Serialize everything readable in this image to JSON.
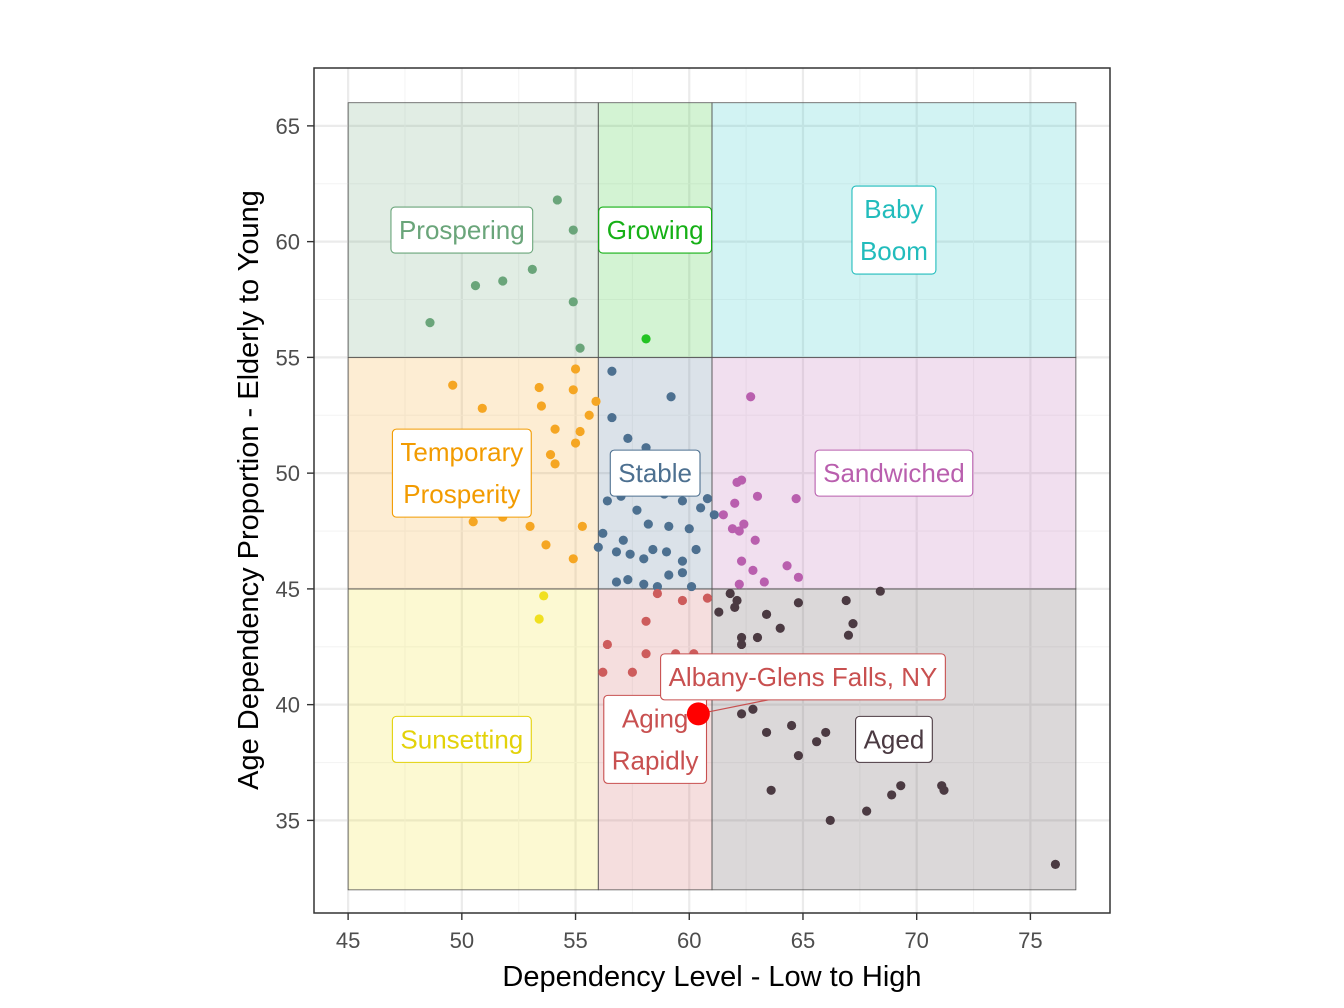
{
  "chart_data": {
    "type": "scatter",
    "title": "",
    "xlabel": "Dependency Level - Low to High",
    "ylabel": "Age Dependency Proportion - Elderly to Young",
    "xlim": [
      43.5,
      78.5
    ],
    "ylim": [
      31,
      67.5
    ],
    "x_ticks": [
      45,
      50,
      55,
      60,
      65,
      70,
      75
    ],
    "y_ticks": [
      35,
      40,
      45,
      50,
      55,
      60,
      65
    ],
    "grid": true,
    "legend": "none",
    "regions": [
      {
        "name": "Prospering",
        "label_lines": [
          "Prospering"
        ],
        "x": [
          45,
          56
        ],
        "y": [
          55,
          66
        ],
        "fill": "#6aa57a",
        "text_color": "#6aa57a",
        "label_at": [
          50,
          60.5
        ]
      },
      {
        "name": "Growing",
        "label_lines": [
          "Growing"
        ],
        "x": [
          56,
          61
        ],
        "y": [
          55,
          66
        ],
        "fill": "#22c422",
        "text_color": "#16b016",
        "label_at": [
          58.5,
          60.5
        ]
      },
      {
        "name": "Baby Boom",
        "label_lines": [
          "Baby",
          "Boom"
        ],
        "x": [
          61,
          77
        ],
        "y": [
          55,
          66
        ],
        "fill": "#20c2c2",
        "text_color": "#22bcbc",
        "label_at": [
          69,
          60.5
        ]
      },
      {
        "name": "Temporary Prosperity",
        "label_lines": [
          "Temporary",
          "Prosperity"
        ],
        "x": [
          45,
          56
        ],
        "y": [
          45,
          55
        ],
        "fill": "#f5a623",
        "text_color": "#f29b00",
        "label_at": [
          50,
          50
        ]
      },
      {
        "name": "Stable",
        "label_lines": [
          "Stable"
        ],
        "x": [
          56,
          61
        ],
        "y": [
          45,
          55
        ],
        "fill": "#4d7090",
        "text_color": "#4d7090",
        "label_at": [
          58.5,
          50
        ]
      },
      {
        "name": "Sandwiched",
        "label_lines": [
          "Sandwiched"
        ],
        "x": [
          61,
          77
        ],
        "y": [
          45,
          55
        ],
        "fill": "#b95fae",
        "text_color": "#b95fae",
        "label_at": [
          69,
          50
        ]
      },
      {
        "name": "Sunsetting",
        "label_lines": [
          "Sunsetting"
        ],
        "x": [
          45,
          56
        ],
        "y": [
          32,
          45
        ],
        "fill": "#f0e020",
        "text_color": "#e3d20a",
        "label_at": [
          50,
          38.5
        ]
      },
      {
        "name": "Aging Rapidly",
        "label_lines": [
          "Aging",
          "Rapidly"
        ],
        "x": [
          56,
          61
        ],
        "y": [
          32,
          45
        ],
        "fill": "#cd5c5c",
        "text_color": "#c85050",
        "label_at": [
          58.5,
          38.5
        ]
      },
      {
        "name": "Aged",
        "label_lines": [
          "Aged"
        ],
        "x": [
          61,
          77
        ],
        "y": [
          32,
          45
        ],
        "fill": "#4b3a42",
        "text_color": "#4b3a42",
        "label_at": [
          69,
          38.5
        ]
      }
    ],
    "series": [
      {
        "region": "Prospering",
        "color": "#6aa57a",
        "points": [
          [
            48.6,
            56.5
          ],
          [
            50.6,
            58.1
          ],
          [
            51.8,
            58.3
          ],
          [
            53.1,
            58.8
          ],
          [
            54.2,
            61.8
          ],
          [
            54.9,
            60.5
          ],
          [
            54.9,
            57.4
          ],
          [
            55.2,
            55.4
          ]
        ]
      },
      {
        "region": "Growing",
        "color": "#22c422",
        "points": [
          [
            58.1,
            55.8
          ]
        ]
      },
      {
        "region": "Temporary Prosperity",
        "color": "#f5a623",
        "points": [
          [
            49.6,
            53.8
          ],
          [
            50.9,
            52.8
          ],
          [
            53.4,
            53.7
          ],
          [
            53.5,
            52.9
          ],
          [
            54.9,
            53.6
          ],
          [
            55.0,
            54.5
          ],
          [
            55.6,
            52.5
          ],
          [
            54.1,
            51.9
          ],
          [
            55.0,
            51.3
          ],
          [
            55.2,
            51.8
          ],
          [
            55.9,
            53.1
          ],
          [
            53.9,
            50.8
          ],
          [
            54.1,
            50.4
          ],
          [
            50.5,
            47.9
          ],
          [
            51.8,
            48.1
          ],
          [
            53.0,
            47.7
          ],
          [
            53.7,
            46.9
          ],
          [
            54.9,
            46.3
          ],
          [
            55.3,
            47.7
          ]
        ]
      },
      {
        "region": "Stable",
        "color": "#4d7090",
        "points": [
          [
            56.6,
            54.4
          ],
          [
            56.6,
            52.4
          ],
          [
            58.1,
            51.1
          ],
          [
            59.2,
            53.3
          ],
          [
            57.3,
            51.5
          ],
          [
            59.0,
            50.3
          ],
          [
            56.4,
            48.8
          ],
          [
            57.0,
            49.0
          ],
          [
            58.9,
            49.1
          ],
          [
            59.7,
            48.8
          ],
          [
            56.2,
            47.4
          ],
          [
            56.8,
            46.6
          ],
          [
            57.7,
            48.4
          ],
          [
            58.2,
            47.8
          ],
          [
            57.1,
            47.1
          ],
          [
            59.1,
            47.7
          ],
          [
            60.0,
            47.6
          ],
          [
            60.3,
            46.7
          ],
          [
            60.5,
            48.5
          ],
          [
            56.0,
            46.8
          ],
          [
            57.4,
            46.5
          ],
          [
            58.4,
            46.7
          ],
          [
            59.0,
            46.6
          ],
          [
            59.7,
            46.2
          ],
          [
            56.8,
            45.3
          ],
          [
            57.3,
            45.4
          ],
          [
            58.0,
            45.2
          ],
          [
            58.6,
            45.1
          ],
          [
            59.1,
            45.6
          ],
          [
            59.7,
            45.7
          ],
          [
            60.1,
            45.1
          ],
          [
            60.8,
            48.9
          ],
          [
            61.1,
            48.2
          ],
          [
            58.0,
            46.3
          ]
        ]
      },
      {
        "region": "Sandwiched",
        "color": "#b95fae",
        "points": [
          [
            62.7,
            53.3
          ],
          [
            62.1,
            49.6
          ],
          [
            62.3,
            49.7
          ],
          [
            63.0,
            49.0
          ],
          [
            64.7,
            48.9
          ],
          [
            61.5,
            48.2
          ],
          [
            62.0,
            48.7
          ],
          [
            62.2,
            47.5
          ],
          [
            62.4,
            47.8
          ],
          [
            61.9,
            47.6
          ],
          [
            62.9,
            47.1
          ],
          [
            62.3,
            46.2
          ],
          [
            62.8,
            45.8
          ],
          [
            64.3,
            46.0
          ],
          [
            63.3,
            45.3
          ],
          [
            64.8,
            45.5
          ],
          [
            62.2,
            45.2
          ]
        ]
      },
      {
        "region": "Sunsetting",
        "color": "#f0e020",
        "points": [
          [
            53.6,
            44.7
          ],
          [
            53.4,
            43.7
          ]
        ]
      },
      {
        "region": "Aging Rapidly",
        "color": "#cd5c5c",
        "points": [
          [
            58.6,
            44.8
          ],
          [
            59.7,
            44.5
          ],
          [
            60.8,
            44.6
          ],
          [
            58.1,
            43.6
          ],
          [
            56.4,
            42.6
          ],
          [
            58.1,
            42.2
          ],
          [
            59.4,
            42.2
          ],
          [
            60.2,
            42.2
          ],
          [
            56.2,
            41.4
          ],
          [
            57.5,
            41.4
          ],
          [
            60.7,
            41.3
          ],
          [
            61.2,
            41.2
          ]
        ]
      },
      {
        "region": "Aged",
        "color": "#4b3a42",
        "points": [
          [
            61.8,
            44.8
          ],
          [
            62.1,
            44.5
          ],
          [
            61.3,
            44.0
          ],
          [
            62.0,
            44.2
          ],
          [
            62.3,
            42.9
          ],
          [
            63.0,
            42.9
          ],
          [
            63.4,
            43.9
          ],
          [
            64.0,
            43.3
          ],
          [
            62.3,
            42.6
          ],
          [
            64.8,
            44.4
          ],
          [
            66.9,
            44.5
          ],
          [
            68.4,
            44.9
          ],
          [
            67.2,
            43.5
          ],
          [
            67.0,
            43.0
          ],
          [
            61.8,
            42.0
          ],
          [
            62.4,
            41.6
          ],
          [
            63.8,
            41.3
          ],
          [
            64.3,
            41.7
          ],
          [
            65.3,
            42.0
          ],
          [
            61.5,
            40.8
          ],
          [
            62.2,
            40.6
          ],
          [
            62.9,
            40.4
          ],
          [
            63.1,
            40.9
          ],
          [
            64.1,
            41.0
          ],
          [
            62.3,
            39.6
          ],
          [
            62.8,
            39.8
          ],
          [
            63.4,
            38.8
          ],
          [
            64.5,
            39.1
          ],
          [
            65.6,
            38.4
          ],
          [
            66.0,
            38.8
          ],
          [
            64.8,
            37.8
          ],
          [
            63.6,
            36.3
          ],
          [
            66.2,
            35.0
          ],
          [
            67.8,
            35.4
          ],
          [
            68.9,
            36.1
          ],
          [
            69.3,
            36.5
          ],
          [
            71.1,
            36.5
          ],
          [
            71.2,
            36.3
          ],
          [
            76.1,
            33.1
          ]
        ]
      }
    ],
    "highlight": {
      "label": "Albany-Glens Falls, NY",
      "x": 60.4,
      "y": 39.6,
      "color": "#ff0000",
      "label_at": [
        65,
        41.2
      ],
      "text_color": "#c85050"
    }
  }
}
